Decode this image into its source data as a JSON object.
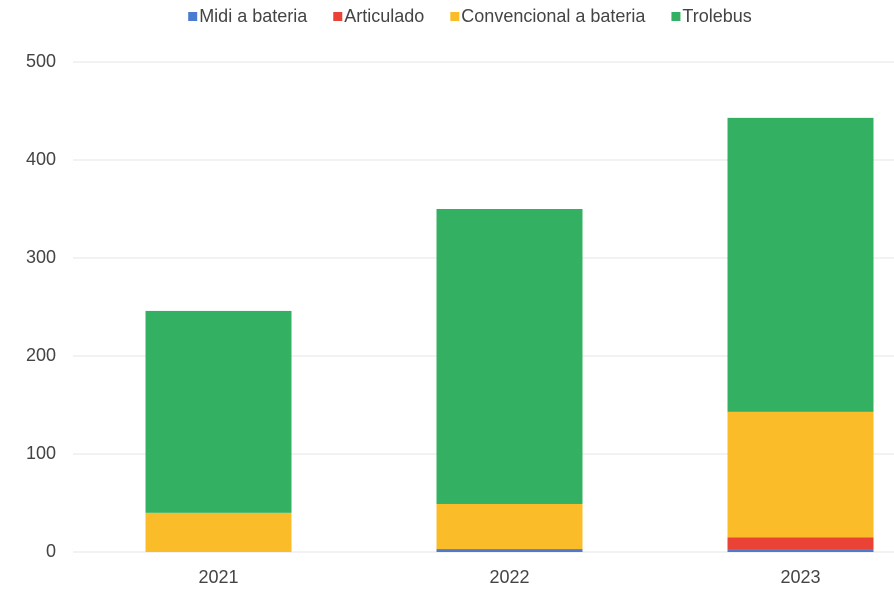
{
  "chart_data": {
    "type": "stacked-bar",
    "categories": [
      "2021",
      "2022",
      "2023"
    ],
    "series": [
      {
        "name": "Midi a bateria",
        "color": "#4a7bd0",
        "values": [
          0,
          3,
          3
        ]
      },
      {
        "name": "Articulado",
        "color": "#ea4335",
        "values": [
          0,
          0,
          12
        ]
      },
      {
        "name": "Convencional a bateria",
        "color": "#fbbc2a",
        "values": [
          40,
          46,
          128
        ]
      },
      {
        "name": "Trolebus",
        "color": "#34b062",
        "values": [
          206,
          301,
          300
        ]
      }
    ],
    "ylim": [
      0,
      500
    ],
    "yticks": [
      0,
      100,
      200,
      300,
      400,
      500
    ],
    "grid": true,
    "legend": "top"
  }
}
